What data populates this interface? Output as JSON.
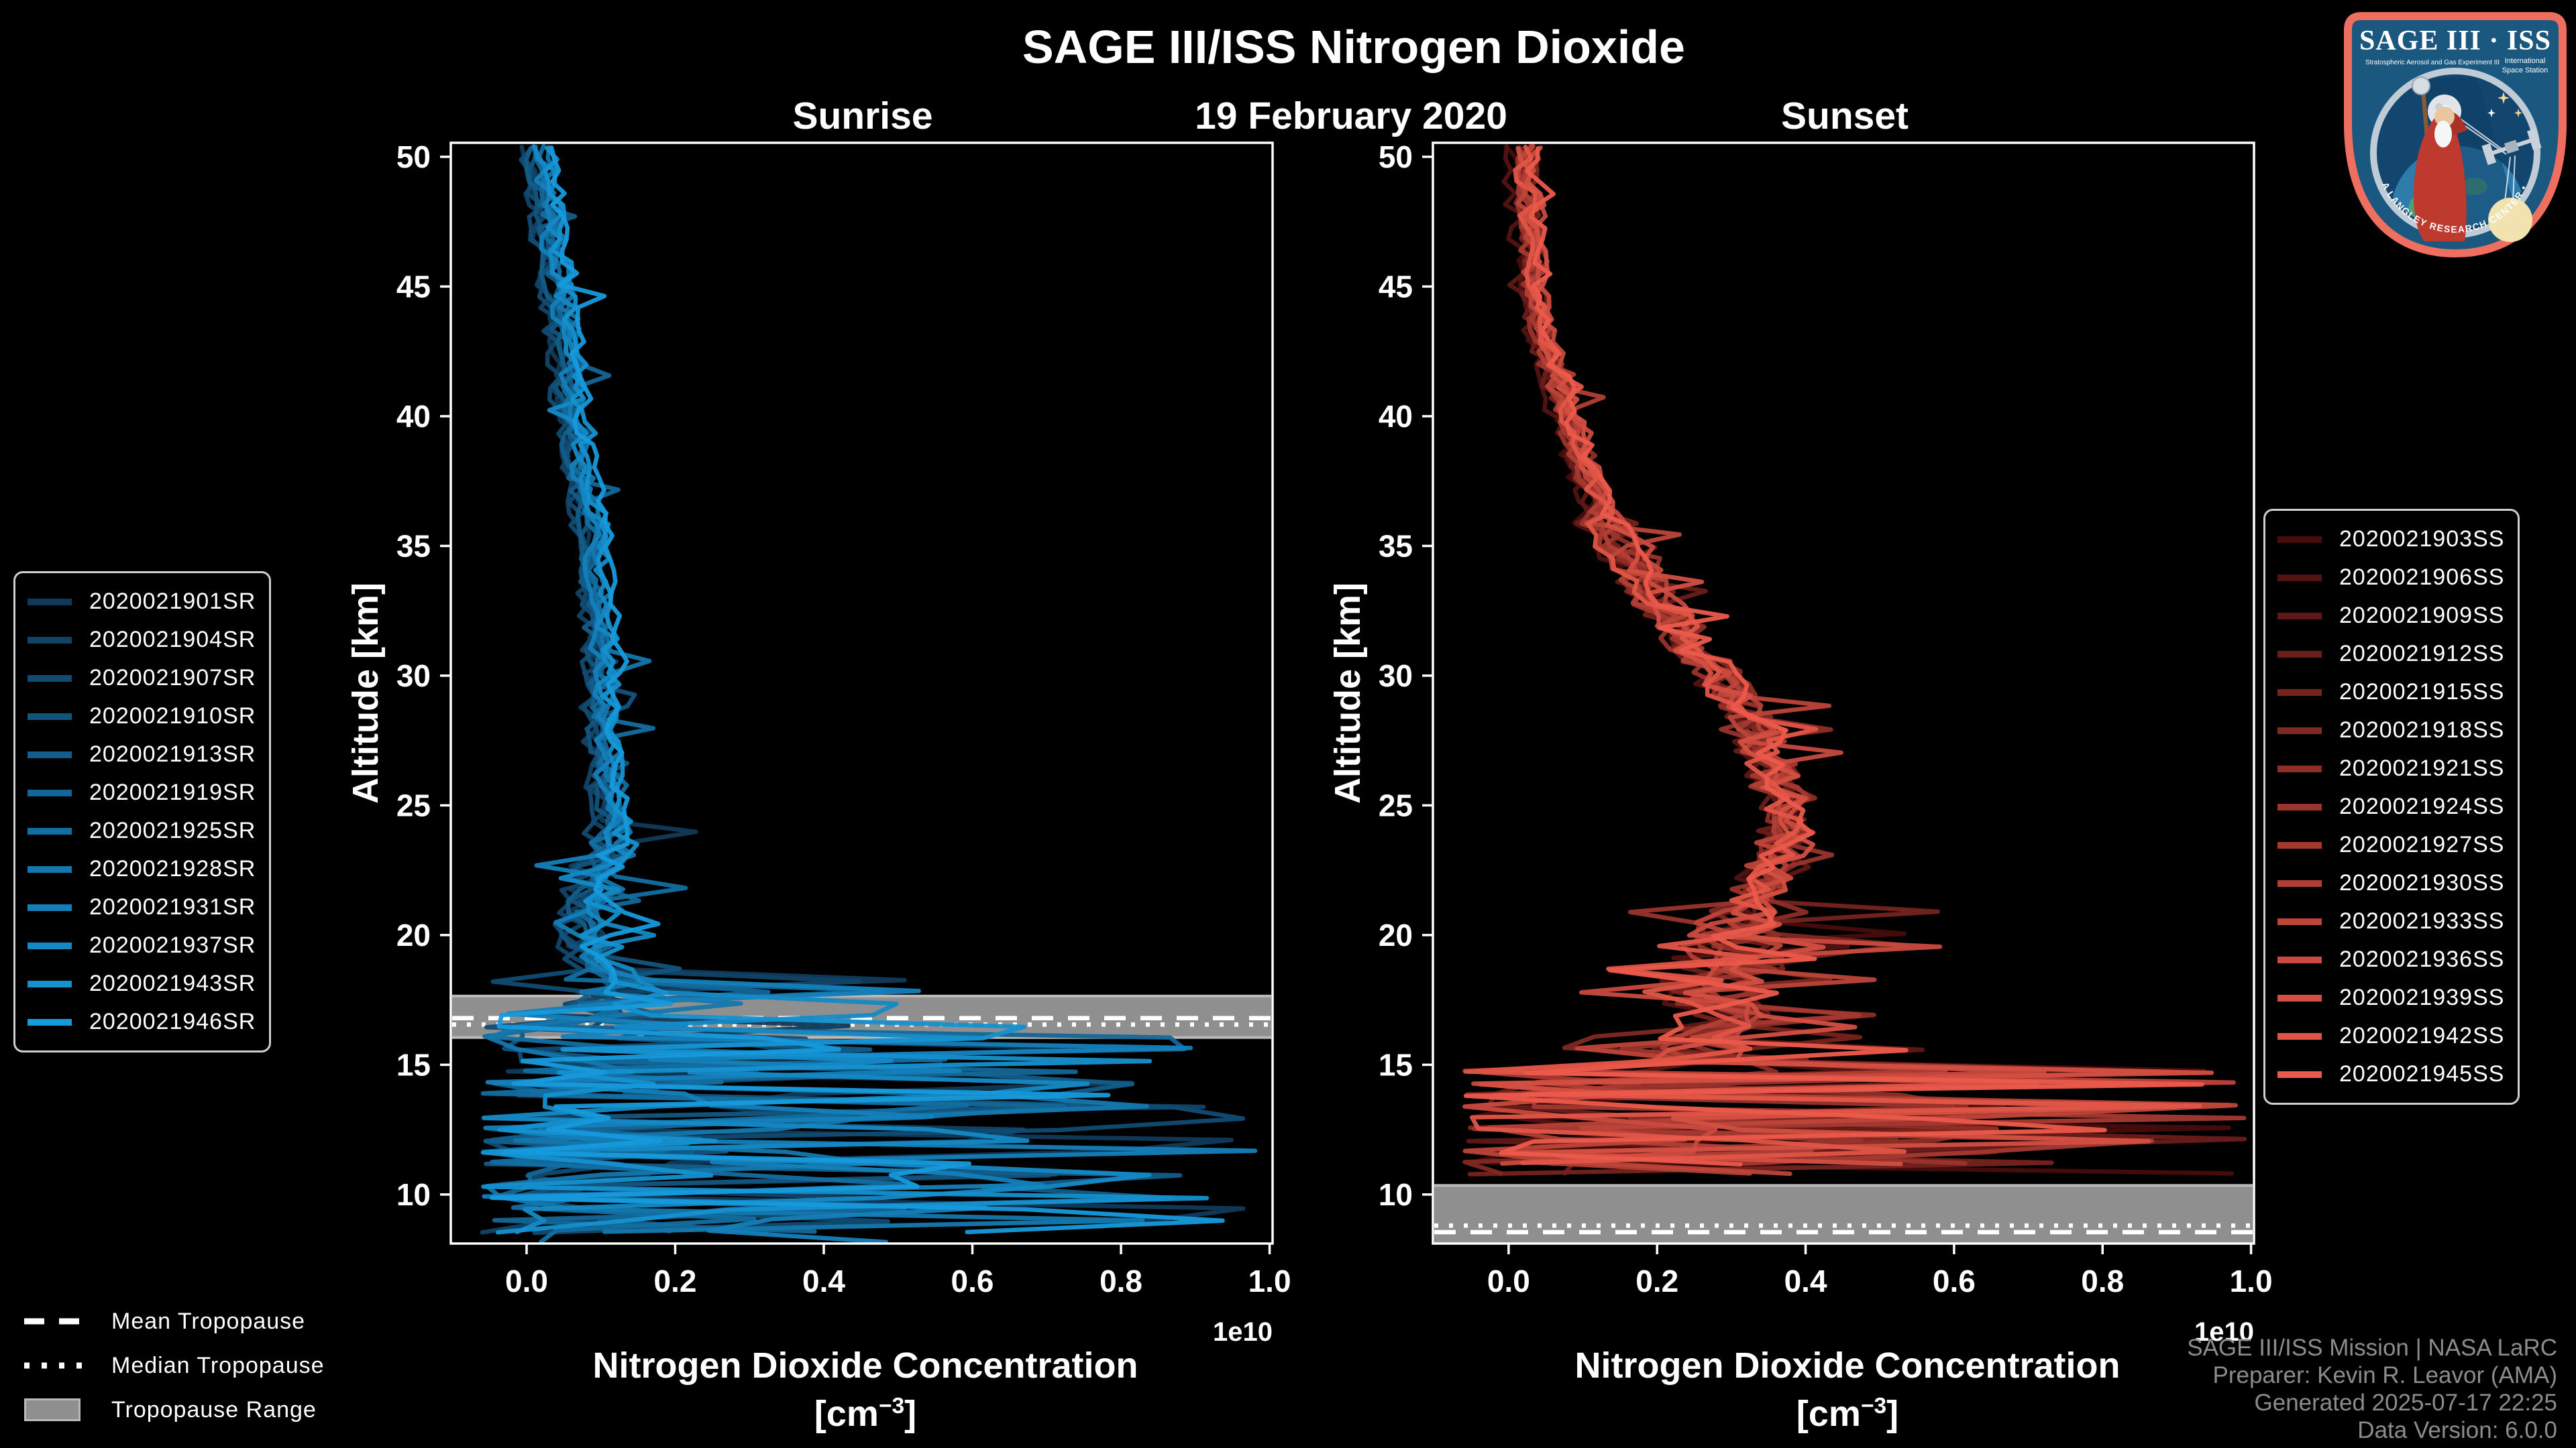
{
  "title": "SAGE III/ISS Nitrogen Dioxide",
  "date_label": "19 February 2020",
  "panel_titles": {
    "sunrise": "Sunrise",
    "sunset": "Sunset"
  },
  "axes": {
    "x_label": "Nitrogen Dioxide Concentration",
    "x_unit_prefix": "[cm",
    "x_unit_sup": "−3",
    "x_unit_suffix": "]",
    "x_offset_text": "1e10",
    "y_label": "Altitude [km]",
    "x_ticks": [
      "0.0",
      "0.2",
      "0.4",
      "0.6",
      "0.8",
      "1.0"
    ],
    "y_ticks": [
      "10",
      "15",
      "20",
      "25",
      "30",
      "35",
      "40",
      "45",
      "50"
    ]
  },
  "chart_data": [
    {
      "type": "line",
      "panel": "sunrise",
      "title": "Sunrise",
      "xlabel": "Nitrogen Dioxide Concentration [cm^-3] (x 1e10)",
      "ylabel": "Altitude [km]",
      "xlim_1e10": [
        -0.102,
        1.004
      ],
      "ylim_km": [
        8.1,
        50.5
      ],
      "grid": false,
      "legend_position": "outside-left",
      "color_start": "#103a5b",
      "color_end": "#169adc",
      "series": [
        {
          "name": "2020021901SR"
        },
        {
          "name": "2020021904SR"
        },
        {
          "name": "2020021907SR"
        },
        {
          "name": "2020021910SR"
        },
        {
          "name": "2020021913SR"
        },
        {
          "name": "2020021919SR"
        },
        {
          "name": "2020021925SR"
        },
        {
          "name": "2020021928SR"
        },
        {
          "name": "2020021931SR"
        },
        {
          "name": "2020021937SR"
        },
        {
          "name": "2020021943SR"
        },
        {
          "name": "2020021946SR"
        }
      ],
      "representation": "12 noisy vertical profiles scattered around mean_profile; large horizontal excursions (0 to 1.0e10) below ~16.5 km",
      "mean_profile": [
        [
          50.5,
          0.012
        ],
        [
          48,
          0.025
        ],
        [
          46,
          0.034
        ],
        [
          44,
          0.045
        ],
        [
          42,
          0.055
        ],
        [
          40,
          0.058
        ],
        [
          38,
          0.07
        ],
        [
          36,
          0.085
        ],
        [
          34,
          0.09
        ],
        [
          32,
          0.095
        ],
        [
          30,
          0.098
        ],
        [
          28,
          0.1
        ],
        [
          26,
          0.105
        ],
        [
          24,
          0.115
        ],
        [
          22,
          0.09
        ],
        [
          20,
          0.08
        ],
        [
          19,
          0.095
        ],
        [
          18,
          0.11
        ],
        [
          17,
          0.13
        ],
        [
          16,
          0.18
        ],
        [
          15,
          0.22
        ],
        [
          14,
          0.25
        ],
        [
          12,
          0.25
        ],
        [
          10,
          0.26
        ],
        [
          8.2,
          0.25
        ]
      ],
      "alt_stop_km": 8.15,
      "noise_bands": [
        {
          "alt_max": 51,
          "alt_min": 24,
          "amp": 0.013,
          "spike_p": 0.05,
          "spike_amp": 0.06
        },
        {
          "alt_max": 24,
          "alt_min": 18.5,
          "amp": 0.032,
          "spike_p": 0.12,
          "spike_amp": 0.13
        },
        {
          "alt_max": 18.5,
          "alt_min": 16.6,
          "amp": 0.06,
          "spike_p": 0.3,
          "spike_amp": 0.42
        },
        {
          "alt_max": 16.6,
          "alt_min": 7,
          "mode": "chaos",
          "max": 1.0
        }
      ],
      "tropopause": {
        "mean_km": 16.8,
        "median_km": 16.55,
        "range_km": [
          16.0,
          17.7
        ]
      }
    },
    {
      "type": "line",
      "panel": "sunset",
      "title": "Sunset",
      "xlabel": "Nitrogen Dioxide Concentration [cm^-3] (x 1e10)",
      "ylabel": "Altitude [km]",
      "xlim_1e10": [
        -0.102,
        1.004
      ],
      "ylim_km": [
        8.1,
        50.5
      ],
      "grid": false,
      "legend_position": "outside-right",
      "color_start": "#470d0c",
      "color_end": "#ec5a4b",
      "series": [
        {
          "name": "2020021903SS"
        },
        {
          "name": "2020021906SS"
        },
        {
          "name": "2020021909SS"
        },
        {
          "name": "2020021912SS"
        },
        {
          "name": "2020021915SS"
        },
        {
          "name": "2020021918SS"
        },
        {
          "name": "2020021921SS"
        },
        {
          "name": "2020021924SS"
        },
        {
          "name": "2020021927SS"
        },
        {
          "name": "2020021930SS"
        },
        {
          "name": "2020021933SS"
        },
        {
          "name": "2020021936SS"
        },
        {
          "name": "2020021939SS"
        },
        {
          "name": "2020021942SS"
        },
        {
          "name": "2020021945SS"
        }
      ],
      "representation": "15 noisy vertical profiles with stratospheric bulge near 25 km (~0.38e10); large horizontal excursions (0 to 1.0e10) below ~15 km",
      "mean_profile": [
        [
          50.5,
          0.02
        ],
        [
          48,
          0.025
        ],
        [
          46,
          0.03
        ],
        [
          44,
          0.04
        ],
        [
          42,
          0.055
        ],
        [
          40,
          0.08
        ],
        [
          38,
          0.1
        ],
        [
          36,
          0.13
        ],
        [
          34,
          0.17
        ],
        [
          32,
          0.22
        ],
        [
          30,
          0.28
        ],
        [
          28,
          0.33
        ],
        [
          26,
          0.36
        ],
        [
          25,
          0.375
        ],
        [
          24,
          0.37
        ],
        [
          23,
          0.36
        ],
        [
          22,
          0.34
        ],
        [
          21,
          0.33
        ],
        [
          20,
          0.3
        ],
        [
          19,
          0.3
        ],
        [
          18,
          0.28
        ],
        [
          17,
          0.28
        ],
        [
          16,
          0.26
        ],
        [
          15,
          0.25
        ],
        [
          13,
          0.28
        ],
        [
          11,
          0.3
        ],
        [
          10.8,
          0.28
        ]
      ],
      "alt_stop_km": 10.78,
      "noise_bands": [
        {
          "alt_max": 51,
          "alt_min": 36,
          "amp": 0.015,
          "spike_p": 0.05,
          "spike_amp": 0.05
        },
        {
          "alt_max": 36,
          "alt_min": 21,
          "amp": 0.035,
          "spike_p": 0.06,
          "spike_amp": 0.1
        },
        {
          "alt_max": 21,
          "alt_min": 15,
          "amp": 0.07,
          "spike_p": 0.25,
          "spike_amp": 0.32
        },
        {
          "alt_max": 15,
          "alt_min": 10.5,
          "mode": "chaos",
          "max": 1.0
        }
      ],
      "tropopause": {
        "mean_km": 8.55,
        "median_km": 8.8,
        "range_km": [
          8.15,
          10.4
        ]
      }
    }
  ],
  "tropopause_legend": [
    {
      "label": "Mean Tropopause",
      "style": "dashed"
    },
    {
      "label": "Median Tropopause",
      "style": "dotted"
    },
    {
      "label": "Tropopause Range",
      "style": "patch"
    }
  ],
  "attribution": [
    "SAGE III/ISS Mission | NASA LaRC",
    "Preparer: Kevin R. Leavor (AMA)",
    "Generated 2025-07-17 22:25",
    "Data Version: 6.0.0"
  ],
  "logo": {
    "line1": "SAGE III · ISS",
    "sub_left": "Stratospheric Aerosol and Gas Experiment III",
    "sub_right1": "International",
    "sub_right2": "Space Station",
    "ring_text": "BALL • NASA LANGLEY RESEARCH CENTER • TAS-I • ESA"
  },
  "colors": {
    "background": "#000000",
    "text": "#ffffff",
    "muted_text": "#8c8c8c",
    "tropopause_band": "#8f8f8f",
    "tropopause_band_edge": "#b9b9b9",
    "legend_border": "#cfcfcf",
    "logo_border": "#ee6e5f",
    "logo_navy": "#1b5880"
  }
}
